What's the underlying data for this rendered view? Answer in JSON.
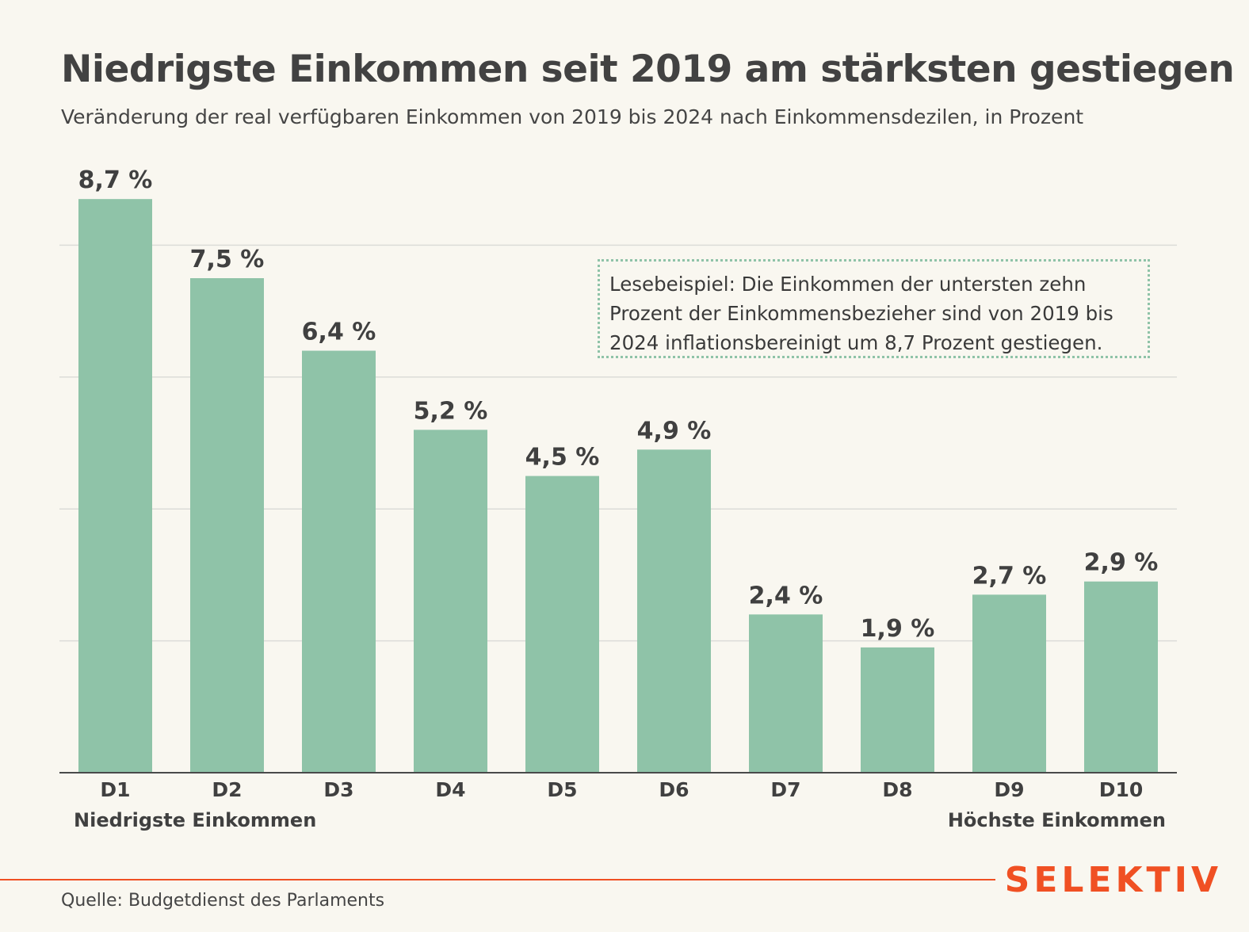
{
  "header": {
    "title": "Niedrigste Einkommen seit 2019 am stärksten gestiegen",
    "subtitle": "Veränderung der real verfügbaren Einkommen von 2019 bis 2024 nach Einkommensdezilen, in Prozent"
  },
  "note": {
    "text": "Lesebeispiel: Die Einkommen der untersten zehn Prozent der Einkommensbezieher sind von 2019 bis 2024 inflationsbereinigt um 8,7 Prozent gestiegen."
  },
  "axis_end_labels": {
    "left": "Niedrigste Einkommen",
    "right": "Höchste Einkommen"
  },
  "footer": {
    "source": "Quelle: Budgetdienst des Parlaments",
    "brand": "SELEKTIV"
  },
  "colors": {
    "bar": "#8fc3a8",
    "brand": "#f05023",
    "background": "#f9f7f0",
    "grid": "#dcdcd8"
  },
  "chart_data": {
    "type": "bar",
    "title": "Niedrigste Einkommen seit 2019 am stärksten gestiegen",
    "subtitle": "Veränderung der real verfügbaren Einkommen von 2019 bis 2024 nach Einkommensdezilen, in Prozent",
    "categories": [
      "D1",
      "D2",
      "D3",
      "D4",
      "D5",
      "D6",
      "D7",
      "D8",
      "D9",
      "D10"
    ],
    "values": [
      8.7,
      7.5,
      6.4,
      5.2,
      4.5,
      4.9,
      2.4,
      1.9,
      2.7,
      2.9
    ],
    "value_labels": [
      "8,7 %",
      "7,5 %",
      "6,4 %",
      "5,2 %",
      "4,5 %",
      "4,9 %",
      "2,4 %",
      "1,9 %",
      "2,7 %",
      "2,9 %"
    ],
    "ylim": [
      0,
      10
    ],
    "gridlines": [
      2,
      4,
      6,
      8
    ],
    "grid": true,
    "legend": "none"
  }
}
